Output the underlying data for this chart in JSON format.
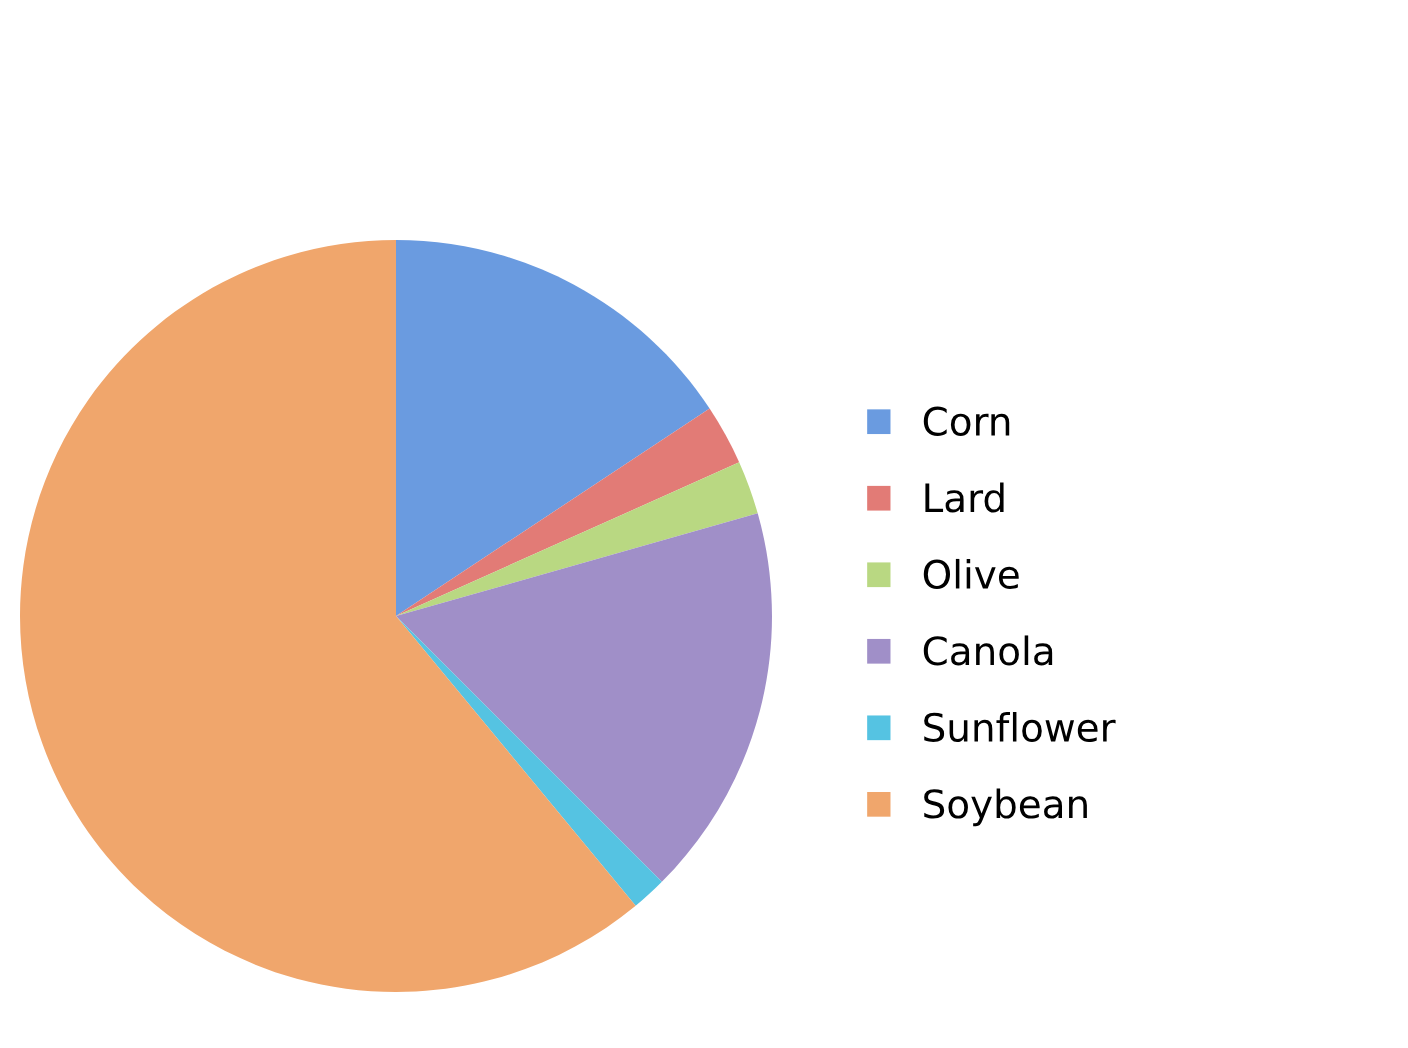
{
  "chart_data": {
    "type": "pie",
    "categories": [
      "Corn",
      "Lard",
      "Olive",
      "Canola",
      "Sunflower",
      "Soybean"
    ],
    "values": [
      15.7,
      2.6,
      2.3,
      16.9,
      1.5,
      61.0
    ],
    "colors": [
      "#6a9be0",
      "#e27b76",
      "#b9d882",
      "#a08fc8",
      "#55c3e2",
      "#f0a66c"
    ],
    "legend": "right"
  }
}
